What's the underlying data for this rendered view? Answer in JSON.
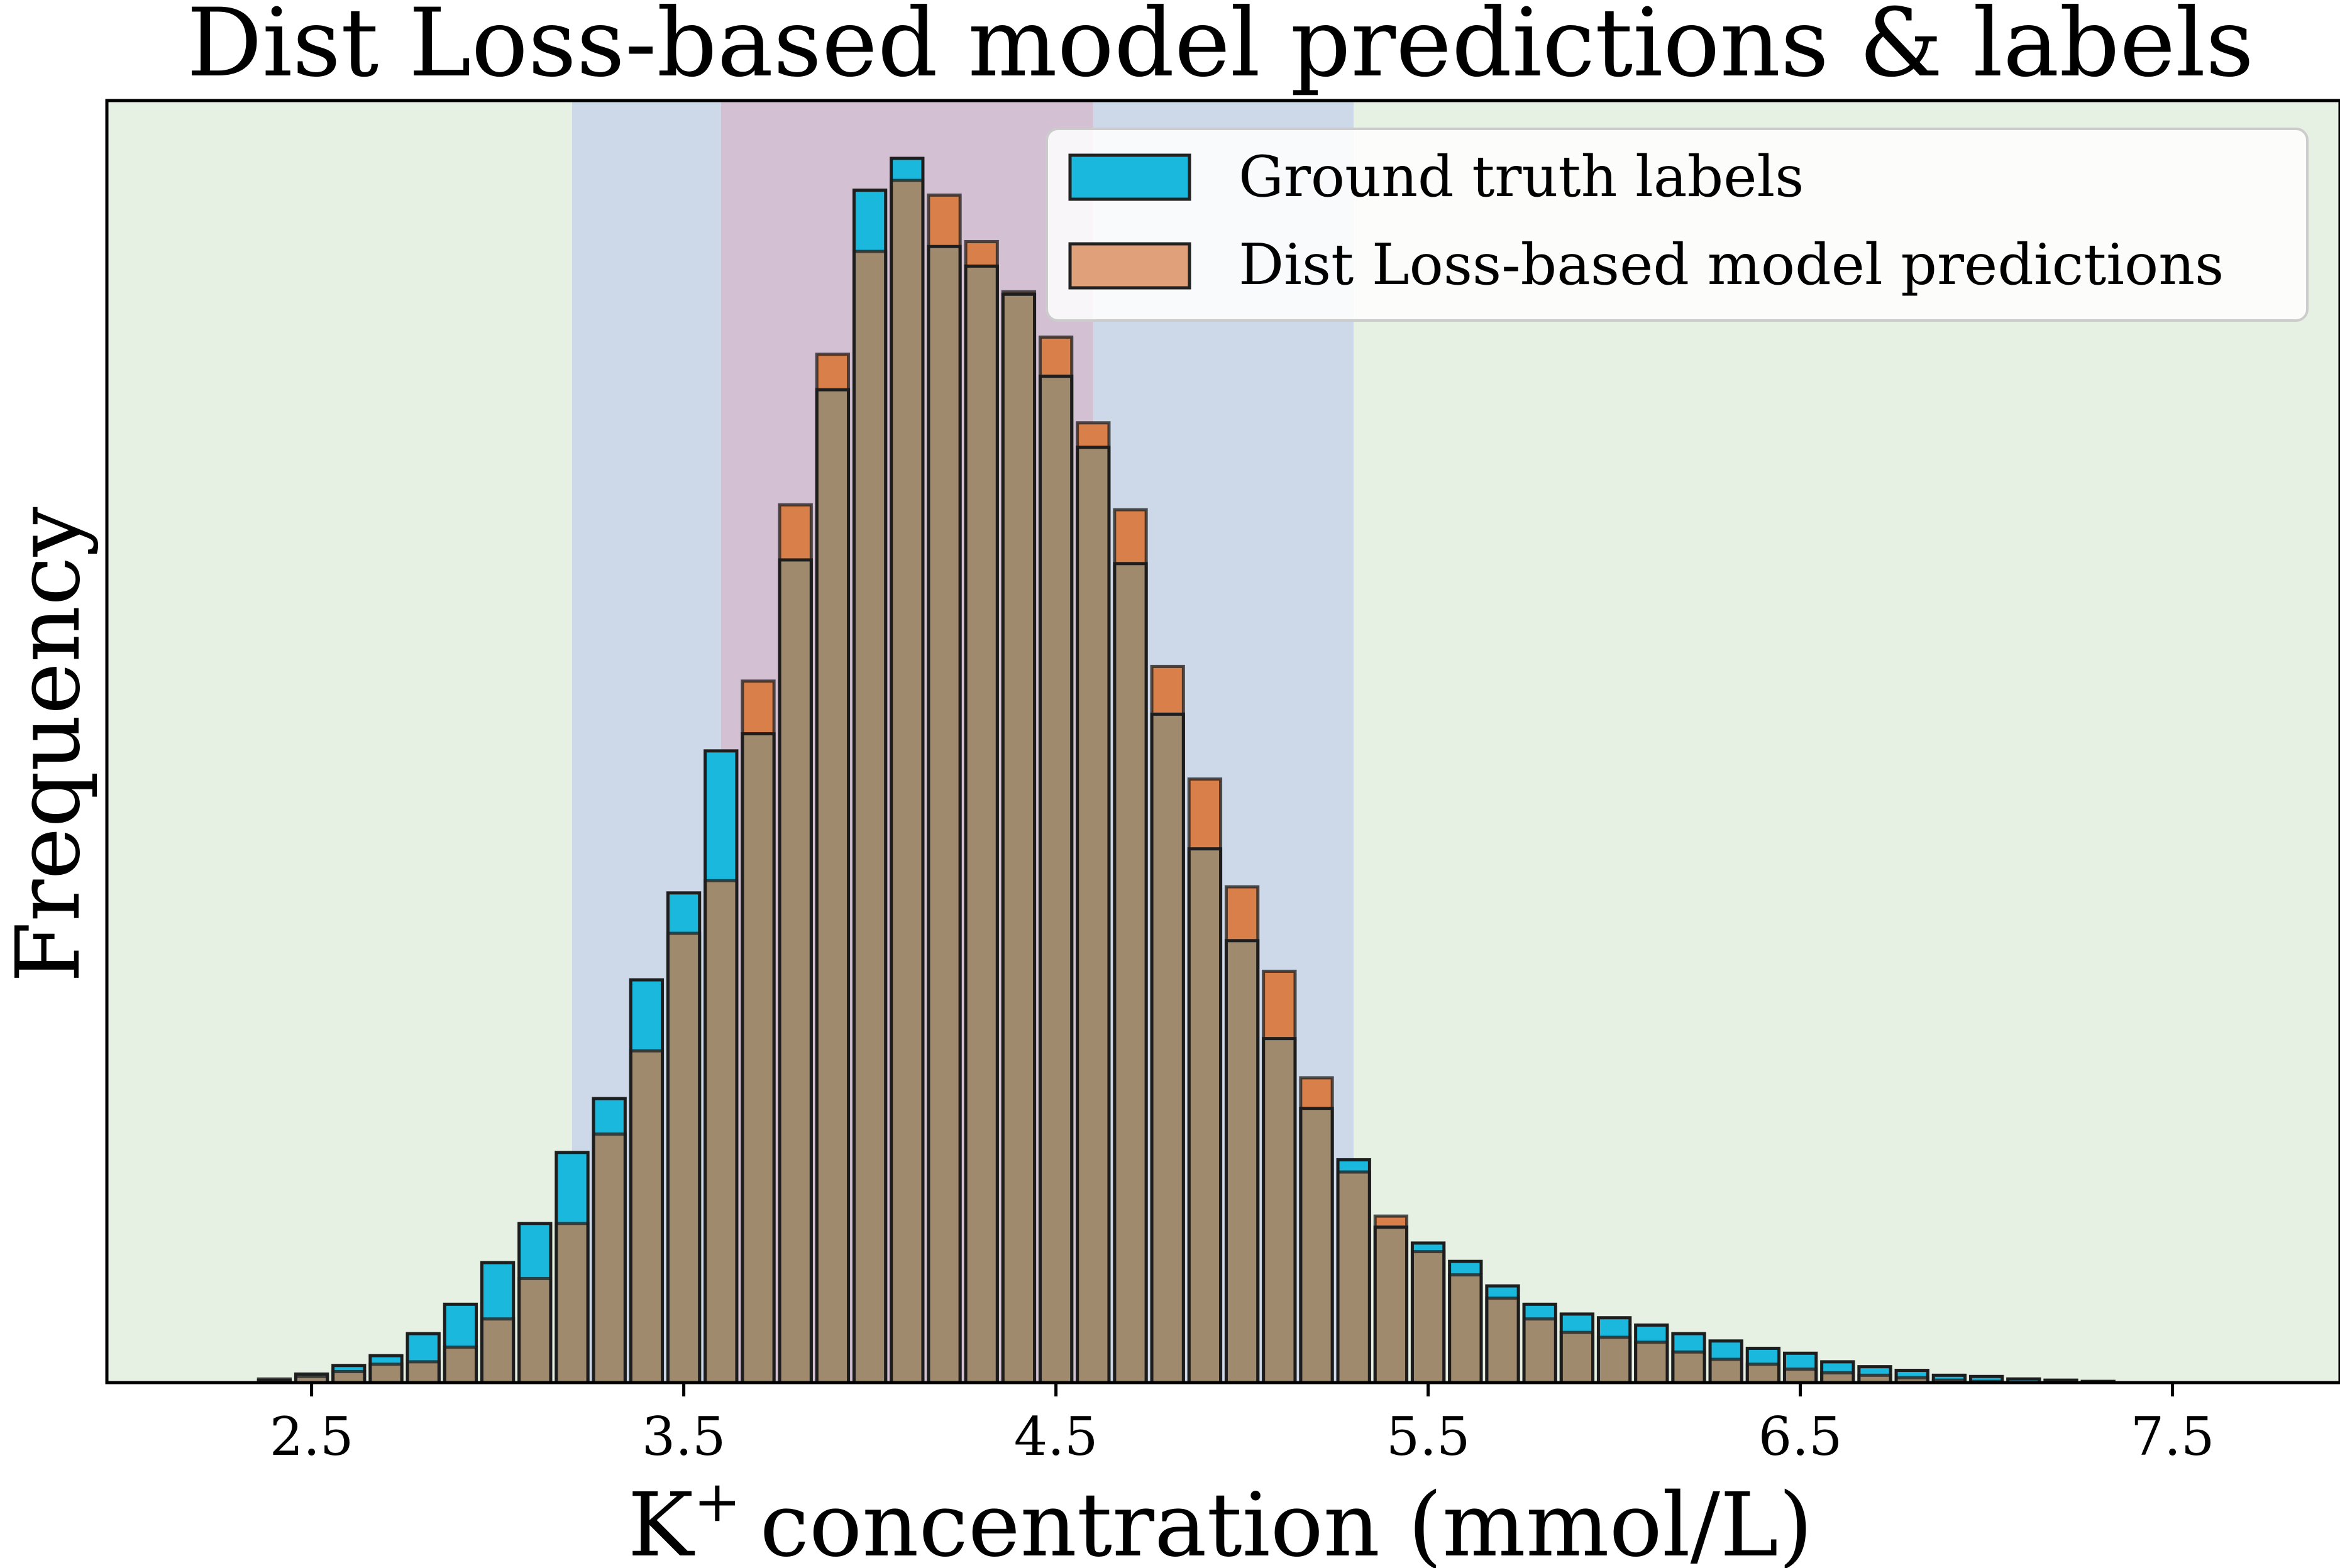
{
  "chart_data": {
    "type": "bar",
    "title": "Dist Loss-based model predictions & labels",
    "xlabel": "concentration (mmol/L)",
    "xlabel_symbol": "K",
    "xlabel_superscript": "+",
    "ylabel": "Frequency",
    "xlim": [
      1.95,
      7.95
    ],
    "ylim": [
      0,
      1000
    ],
    "y_ticks_shown": false,
    "x_ticks": [
      "2.5",
      "3.5",
      "4.5",
      "5.5",
      "6.5",
      "7.5"
    ],
    "x_tick_values": [
      2.5,
      3.5,
      4.5,
      5.5,
      6.5,
      7.5
    ],
    "bar_width": 0.085,
    "bins": [
      2.0,
      2.1,
      2.2,
      2.3,
      2.4,
      2.5,
      2.6,
      2.7,
      2.8,
      2.9,
      3.0,
      3.1,
      3.2,
      3.3,
      3.4,
      3.5,
      3.6,
      3.7,
      3.8,
      3.9,
      4.0,
      4.1,
      4.2,
      4.3,
      4.4,
      4.5,
      4.6,
      4.7,
      4.8,
      4.9,
      5.0,
      5.1,
      5.2,
      5.3,
      5.4,
      5.5,
      5.6,
      5.7,
      5.8,
      5.9,
      6.0,
      6.1,
      6.2,
      6.3,
      6.4,
      6.5,
      6.6,
      6.7,
      6.8,
      6.9,
      7.0,
      7.1,
      7.2,
      7.3,
      7.4,
      7.5,
      7.6,
      7.7,
      7.8,
      7.9
    ],
    "series": [
      {
        "name": "Ground truth labels",
        "color": "#1ab8dc",
        "values": [
          0,
          0,
          0,
          0,
          2,
          7,
          14,
          22,
          40,
          64,
          98,
          130,
          188,
          232,
          329,
          400,
          516,
          530,
          672,
          811,
          974,
          1000,
          928,
          912,
          889,
          822,
          764,
          669,
          546,
          436,
          361,
          281,
          224,
          182,
          127,
          114,
          99,
          79,
          64,
          56,
          53,
          47,
          40,
          34,
          28,
          24,
          17,
          13,
          10,
          6,
          5,
          3,
          2,
          1,
          0,
          0,
          0,
          0,
          0,
          0
        ]
      },
      {
        "name": "Dist Loss-based model predictions",
        "color": "#d9804a",
        "values": [
          0,
          0,
          0,
          0,
          3,
          5,
          9,
          15,
          17,
          29,
          52,
          85,
          130,
          203,
          271,
          367,
          410,
          573,
          717,
          840,
          924,
          982,
          970,
          932,
          891,
          854,
          784,
          713,
          585,
          493,
          405,
          336,
          249,
          172,
          136,
          107,
          88,
          69,
          52,
          41,
          37,
          33,
          25,
          19,
          15,
          11,
          8,
          6,
          4,
          2,
          1,
          0,
          0,
          0,
          0,
          0,
          0,
          0,
          0,
          0
        ]
      }
    ],
    "overlap_color": "#a08a6e",
    "regions": [
      {
        "from": 1.95,
        "to": 3.2,
        "color": "#e6f1e4"
      },
      {
        "from": 3.2,
        "to": 3.6,
        "color": "#cdd9e8"
      },
      {
        "from": 3.6,
        "to": 4.6,
        "color": "#d3c0d3"
      },
      {
        "from": 4.6,
        "to": 5.3,
        "color": "#cdd9e8"
      },
      {
        "from": 5.3,
        "to": 7.95,
        "color": "#e6f1e4"
      }
    ],
    "legend_position": "top-right"
  }
}
